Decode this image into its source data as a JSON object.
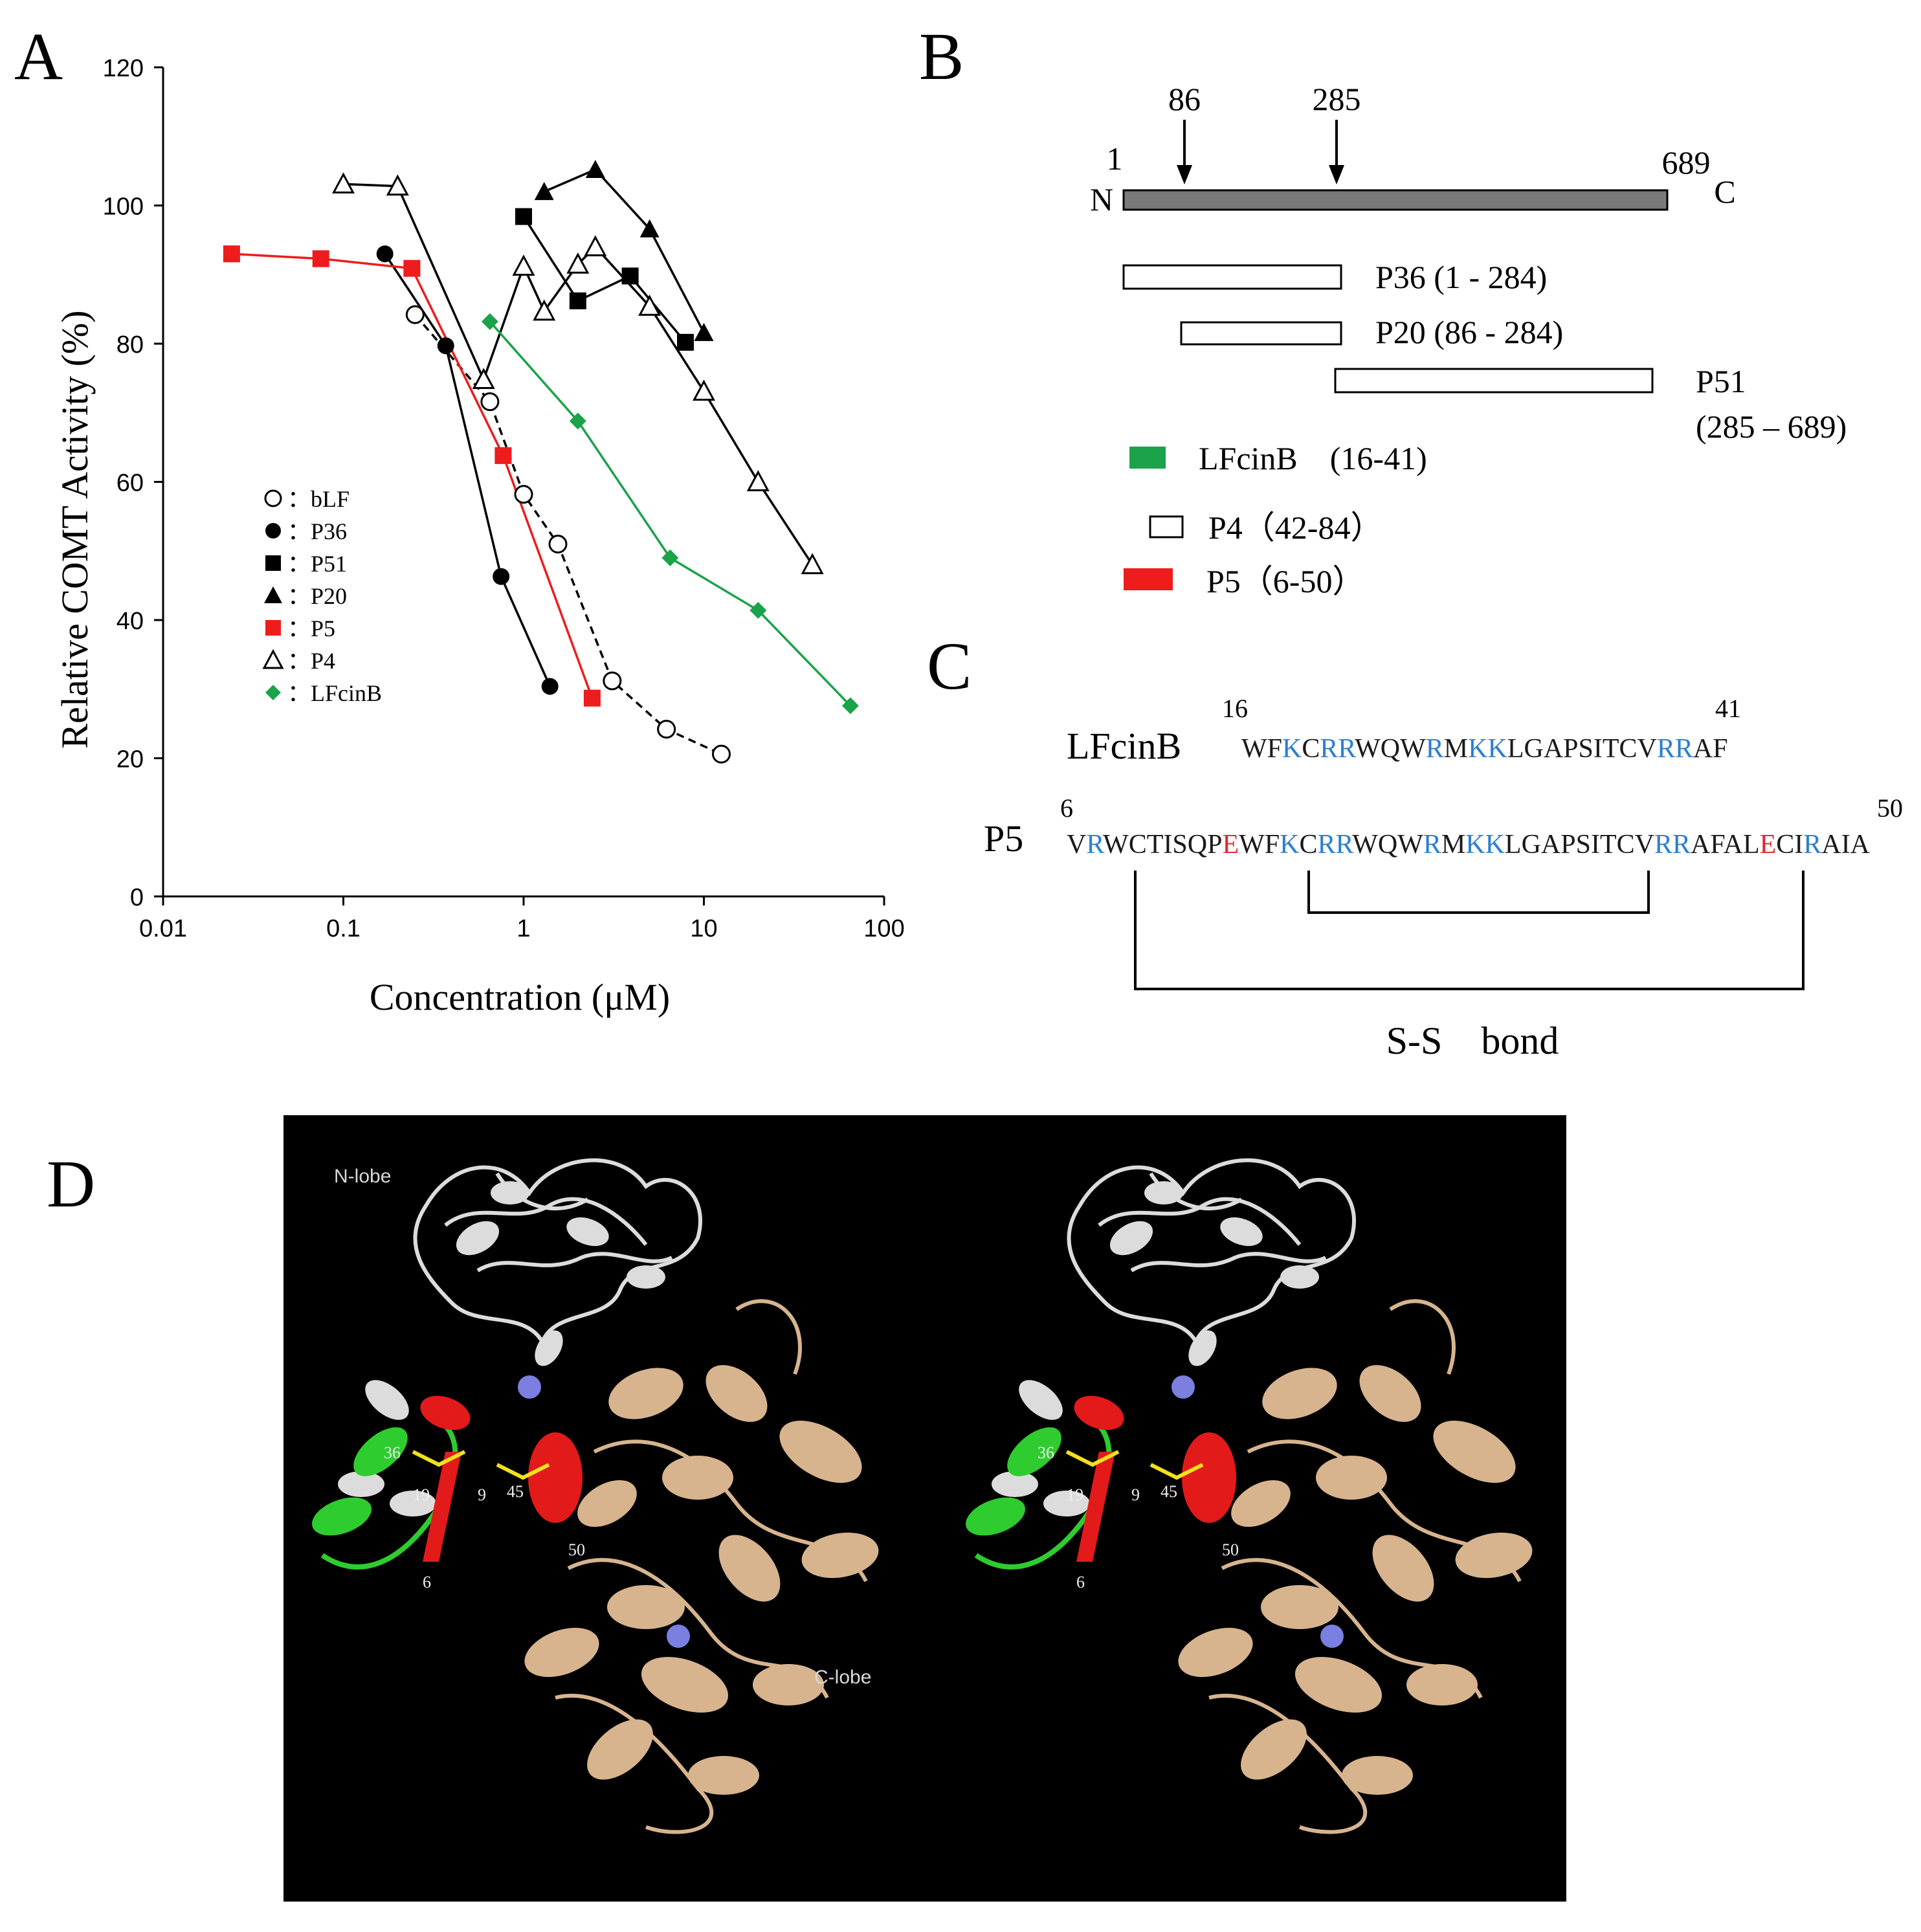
{
  "panels": {
    "a": "A",
    "b": "B",
    "c": "C",
    "d": "D"
  },
  "chart_data": {
    "type": "line",
    "xlabel": "Concentration (μM)",
    "ylabel": "Relative COMT Activity (%)",
    "xscale": "log",
    "xlim": [
      0.01,
      100
    ],
    "ylim": [
      0,
      120
    ],
    "xticks": [
      "0.01",
      "0.1",
      "1",
      "10",
      "100"
    ],
    "yticks": [
      "0",
      "20",
      "40",
      "60",
      "80",
      "100",
      "120"
    ],
    "legend_position": "left",
    "series": [
      {
        "name": "bLF",
        "marker": "circle-open",
        "color": "#000000",
        "dash": true,
        "points": [
          [
            0.25,
            84.2
          ],
          [
            0.65,
            71.6
          ],
          [
            1.0,
            58.2
          ],
          [
            1.55,
            51.0
          ],
          [
            3.1,
            31.2
          ],
          [
            6.2,
            24.2
          ],
          [
            12.5,
            20.6
          ]
        ]
      },
      {
        "name": "P36",
        "marker": "circle-filled",
        "color": "#000000",
        "points": [
          [
            0.17,
            93.0
          ],
          [
            0.37,
            79.7
          ],
          [
            0.75,
            46.3
          ],
          [
            1.4,
            30.4
          ]
        ]
      },
      {
        "name": "P51",
        "marker": "square-filled",
        "color": "#000000",
        "points": [
          [
            1.0,
            98.4
          ],
          [
            2.0,
            86.2
          ],
          [
            3.9,
            89.8
          ],
          [
            7.9,
            80.2
          ]
        ]
      },
      {
        "name": "P20",
        "marker": "triangle-filled",
        "color": "#000000",
        "points": [
          [
            1.3,
            102.0
          ],
          [
            2.5,
            105.2
          ],
          [
            5.0,
            96.6
          ],
          [
            10.0,
            81.6
          ]
        ]
      },
      {
        "name": "P5",
        "marker": "square-filled",
        "color": "#ee1c1c",
        "points": [
          [
            0.024,
            93.0
          ],
          [
            0.075,
            92.3
          ],
          [
            0.24,
            90.9
          ],
          [
            0.77,
            63.8
          ],
          [
            2.4,
            28.7
          ]
        ]
      },
      {
        "name": "P4",
        "marker": "triangle-open",
        "color": "#000000",
        "points": [
          [
            0.1,
            103.1
          ],
          [
            0.2,
            102.8
          ],
          [
            0.6,
            74.8
          ],
          [
            1.0,
            91.2
          ],
          [
            1.3,
            84.7
          ],
          [
            2.0,
            91.5
          ],
          [
            2.5,
            94.0
          ],
          [
            5.0,
            85.4
          ],
          [
            10.0,
            73.1
          ],
          [
            20.0,
            60.0
          ],
          [
            40.0,
            48.0
          ]
        ]
      },
      {
        "name": "LFcinB",
        "marker": "diamond-filled",
        "color": "#1aa34a",
        "points": [
          [
            0.65,
            83.2
          ],
          [
            2.0,
            68.8
          ],
          [
            6.5,
            49.0
          ],
          [
            20.0,
            41.4
          ],
          [
            65.0,
            27.6
          ]
        ]
      }
    ]
  },
  "domain_map": {
    "arrows": [
      "86",
      "285"
    ],
    "start": "1",
    "end": "689",
    "n_term": "N",
    "c_term": "C",
    "fragments": [
      {
        "label": "P36 (1 - 284)"
      },
      {
        "label": "P20 (86 - 284)"
      },
      {
        "label": "P51",
        "label2": "(285 – 689)"
      }
    ],
    "legend": [
      {
        "label": "LFcinB　(16-41)",
        "color": "#1aa34a"
      },
      {
        "label": "P4（42-84）",
        "color": "#ffffff"
      },
      {
        "label": "P5（6-50）",
        "color": "#ee1c1c"
      }
    ]
  },
  "sequences": {
    "lfcinb": {
      "name": "LFcinB",
      "start": "16",
      "end": "41",
      "residues": "WFKCRRWQWRMKKLGAPSITCVRRAF",
      "colors": "kkbkbbkkkbkbbkkkkkkkkkbbkk"
    },
    "p5": {
      "name": "P5",
      "start": "6",
      "end": "50",
      "residues": "VRWCTISQPEWFKCRRWQWRMKKLGAPSITCVRRAFALECIRAIA",
      "colors": "kbkkkkkkkrkkbkbbkkkbkbbkkkkkkkkkbbkkkkrkkbkkk"
    },
    "bond_label": "S-S　bond"
  },
  "structure": {
    "n_lobe": "N-lobe",
    "c_lobe": "C-lobe",
    "residue_labels": [
      "36",
      "19",
      "9",
      "45",
      "50",
      "6"
    ]
  }
}
